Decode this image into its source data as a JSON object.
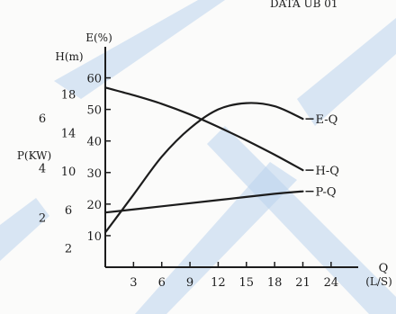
{
  "header_text": "DATA UB 01",
  "watermark_color": "#bcd4ec",
  "ink_color": "#1c1c1c",
  "background_color": "#fbfbfa",
  "chart_data": {
    "type": "line",
    "axes": {
      "efficiency": {
        "label": "E(%)",
        "ticks": [
          "10",
          "20",
          "30",
          "40",
          "50",
          "60"
        ],
        "range": [
          0,
          67
        ]
      },
      "head": {
        "label": "H(m)",
        "ticks": [
          "2",
          "6",
          "10",
          "14",
          "18"
        ],
        "range": [
          0,
          22
        ]
      },
      "power": {
        "label": "P(KW)",
        "ticks": [
          "2",
          "4",
          "6"
        ],
        "range": [
          0,
          8.5
        ]
      },
      "flow": {
        "label": "Q",
        "unit": "(L/S)",
        "ticks": [
          "3",
          "6",
          "9",
          "12",
          "15",
          "18",
          "21",
          "24"
        ],
        "range": [
          0,
          26.5
        ]
      }
    },
    "series": [
      {
        "name": "E-Q",
        "axis": "efficiency",
        "points": [
          [
            0,
            11
          ],
          [
            3,
            23
          ],
          [
            6,
            35
          ],
          [
            9,
            44
          ],
          [
            12,
            50
          ],
          [
            15,
            52
          ],
          [
            18,
            51
          ],
          [
            21,
            47
          ]
        ]
      },
      {
        "name": "H-Q",
        "axis": "head",
        "points": [
          [
            0,
            18.7
          ],
          [
            3,
            17.9
          ],
          [
            6,
            17.0
          ],
          [
            9,
            15.9
          ],
          [
            12,
            14.6
          ],
          [
            15,
            13.2
          ],
          [
            18,
            11.7
          ],
          [
            21,
            10.1
          ]
        ]
      },
      {
        "name": "P-Q",
        "axis": "power",
        "points": [
          [
            0,
            2.2
          ],
          [
            6,
            2.45
          ],
          [
            12,
            2.7
          ],
          [
            18,
            2.95
          ],
          [
            21,
            3.05
          ]
        ]
      }
    ]
  }
}
